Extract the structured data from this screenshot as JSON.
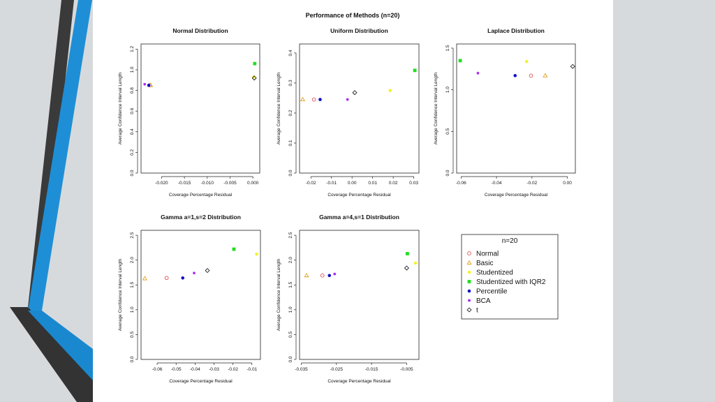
{
  "page": {
    "title": "Performance of Methods (n=20)",
    "background_color": "#d7dadc",
    "accent_colors": {
      "dark": "#3a3a3a",
      "blue": "#1e8fd6"
    }
  },
  "styles": {
    "Normal": {
      "marker": "open-circle",
      "color": "#e05050"
    },
    "Basic": {
      "marker": "open-triangle",
      "color": "#e0a020"
    },
    "Studentized": {
      "marker": "filled-circle",
      "color": "#f2f232"
    },
    "Studentized with IQR2": {
      "marker": "filled-square",
      "color": "#22dd22"
    },
    "Percentile": {
      "marker": "filled-circle",
      "color": "#1010c8"
    },
    "BCA": {
      "marker": "star",
      "color": "#a020f0"
    },
    "t": {
      "marker": "open-diamond",
      "color": "#222222"
    }
  },
  "legend": {
    "title": "n=20",
    "entries": [
      "Normal",
      "Basic",
      "Studentized",
      "Studentized with IQR2",
      "Percentile",
      "BCA",
      "t"
    ]
  },
  "chart_data": [
    {
      "type": "scatter",
      "title": "Normal Distribution",
      "xlabel": "Coverage Percentage Residual",
      "ylabel": "Average Confidence Interval Length",
      "xlim": [
        -0.0245,
        0.0015
      ],
      "ylim": [
        0,
        1.25
      ],
      "xticks": [
        -0.02,
        -0.015,
        -0.01,
        -0.005,
        0.0
      ],
      "xtick_labels": [
        "-0.020",
        "-0.015",
        "-0.010",
        "-0.005",
        "0.000"
      ],
      "yticks": [
        0.0,
        0.2,
        0.4,
        0.6,
        0.8,
        1.0,
        1.2
      ],
      "ytick_labels": [
        "0.0",
        "0.2",
        "0.4",
        "0.6",
        "0.8",
        "1.0",
        "1.2"
      ],
      "grid": false,
      "series": [
        {
          "name": "Normal",
          "x": -0.0226,
          "y": 0.85
        },
        {
          "name": "Basic",
          "x": -0.0224,
          "y": 0.85
        },
        {
          "name": "Studentized",
          "x": 0.0002,
          "y": 0.93
        },
        {
          "name": "Studentized with IQR2",
          "x": 0.0004,
          "y": 1.06
        },
        {
          "name": "Percentile",
          "x": -0.0228,
          "y": 0.85
        },
        {
          "name": "BCA",
          "x": -0.0237,
          "y": 0.86
        },
        {
          "name": "t",
          "x": 0.0003,
          "y": 0.92
        }
      ]
    },
    {
      "type": "scatter",
      "title": "Uniform Distribution",
      "xlabel": "Coverage Percentage Residual",
      "ylabel": "Average Confidence Interval Length",
      "xlim": [
        -0.0255,
        0.0325
      ],
      "ylim": [
        0,
        0.43
      ],
      "xticks": [
        -0.02,
        -0.01,
        0.0,
        0.01,
        0.02,
        0.03
      ],
      "xtick_labels": [
        "-0.02",
        "-0.01",
        "0.00",
        "0.01",
        "0.02",
        "0.03"
      ],
      "yticks": [
        0.0,
        0.1,
        0.2,
        0.3,
        0.4
      ],
      "ytick_labels": [
        "0.0",
        "0.1",
        "0.2",
        "0.3",
        "0.4"
      ],
      "grid": false,
      "series": [
        {
          "name": "Normal",
          "x": -0.0185,
          "y": 0.245
        },
        {
          "name": "Basic",
          "x": -0.024,
          "y": 0.245
        },
        {
          "name": "Studentized",
          "x": 0.0185,
          "y": 0.275
        },
        {
          "name": "Studentized with IQR2",
          "x": 0.0305,
          "y": 0.342
        },
        {
          "name": "Percentile",
          "x": -0.0155,
          "y": 0.245
        },
        {
          "name": "BCA",
          "x": -0.0022,
          "y": 0.245
        },
        {
          "name": "t",
          "x": 0.0013,
          "y": 0.268
        }
      ]
    },
    {
      "type": "scatter",
      "title": "Laplace Distribution",
      "xlabel": "Coverage Percentage Residual",
      "ylabel": "Average Confidence Interval Length",
      "xlim": [
        -0.0625,
        0.0045
      ],
      "ylim": [
        0,
        1.55
      ],
      "xticks": [
        -0.06,
        -0.04,
        -0.02,
        0.0
      ],
      "xtick_labels": [
        "-0.06",
        "-0.04",
        "-0.02",
        "0.00"
      ],
      "yticks": [
        0.0,
        0.5,
        1.0,
        1.5
      ],
      "ytick_labels": [
        "0.0",
        "0.5",
        "1.0",
        "1.5"
      ],
      "grid": false,
      "series": [
        {
          "name": "Normal",
          "x": -0.0205,
          "y": 1.17
        },
        {
          "name": "Basic",
          "x": -0.0125,
          "y": 1.17
        },
        {
          "name": "Studentized",
          "x": -0.023,
          "y": 1.34
        },
        {
          "name": "Studentized with IQR2",
          "x": -0.0605,
          "y": 1.35
        },
        {
          "name": "Percentile",
          "x": -0.0295,
          "y": 1.17
        },
        {
          "name": "BCA",
          "x": -0.0505,
          "y": 1.2
        },
        {
          "name": "t",
          "x": 0.003,
          "y": 1.28
        }
      ]
    },
    {
      "type": "scatter",
      "title": "Gamma a=1,s=2 Distribution",
      "xlabel": "Coverage Percentage Residual",
      "ylabel": "Average Confidence Interval Length",
      "xlim": [
        -0.0685,
        -0.0055
      ],
      "ylim": [
        0,
        2.6
      ],
      "xticks": [
        -0.06,
        -0.05,
        -0.04,
        -0.03,
        -0.02,
        -0.01
      ],
      "xtick_labels": [
        "-0.06",
        "-0.05",
        "-0.04",
        "-0.03",
        "-0.02",
        "-0.01"
      ],
      "yticks": [
        0.0,
        0.5,
        1.0,
        1.5,
        2.0,
        2.5
      ],
      "ytick_labels": [
        "0.0",
        "0.5",
        "1.0",
        "1.5",
        "2.0",
        "2.5"
      ],
      "grid": false,
      "series": [
        {
          "name": "Normal",
          "x": -0.055,
          "y": 1.64
        },
        {
          "name": "Basic",
          "x": -0.0665,
          "y": 1.63
        },
        {
          "name": "Studentized",
          "x": -0.0075,
          "y": 2.12
        },
        {
          "name": "Studentized with IQR2",
          "x": -0.0195,
          "y": 2.22
        },
        {
          "name": "Percentile",
          "x": -0.0465,
          "y": 1.64
        },
        {
          "name": "BCA",
          "x": -0.0405,
          "y": 1.74
        },
        {
          "name": "t",
          "x": -0.0335,
          "y": 1.79
        }
      ]
    },
    {
      "type": "scatter",
      "title": "Gamma a=4,s=1 Distribution",
      "xlabel": "Coverage Percentage Residual",
      "ylabel": "Average Confidence Interval Length",
      "xlim": [
        -0.0355,
        -0.0015
      ],
      "ylim": [
        0,
        2.6
      ],
      "xticks": [
        -0.035,
        -0.025,
        -0.015,
        -0.005
      ],
      "xtick_labels": [
        "-0.035",
        "-0.025",
        "-0.015",
        "-0.005"
      ],
      "yticks": [
        0.0,
        0.5,
        1.0,
        1.5,
        2.0,
        2.5
      ],
      "ytick_labels": [
        "0.0",
        "0.5",
        "1.0",
        "1.5",
        "2.0",
        "2.5"
      ],
      "grid": false,
      "series": [
        {
          "name": "Normal",
          "x": -0.029,
          "y": 1.69
        },
        {
          "name": "Basic",
          "x": -0.0335,
          "y": 1.69
        },
        {
          "name": "Studentized",
          "x": -0.0025,
          "y": 1.94
        },
        {
          "name": "Studentized with IQR2",
          "x": -0.0048,
          "y": 2.13
        },
        {
          "name": "Percentile",
          "x": -0.027,
          "y": 1.69
        },
        {
          "name": "BCA",
          "x": -0.0255,
          "y": 1.72
        },
        {
          "name": "t",
          "x": -0.005,
          "y": 1.84
        }
      ]
    }
  ]
}
